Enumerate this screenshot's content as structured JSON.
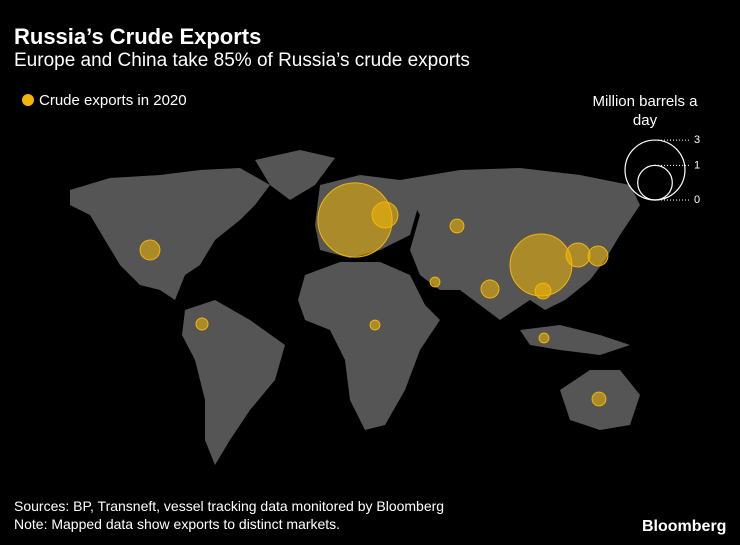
{
  "chart_data": {
    "type": "bubble-map",
    "title": "Russia’s Crude Exports",
    "subtitle": "Europe and China take 85% of Russia’s crude exports",
    "series": [
      {
        "name": "Crude exports in 2020",
        "color": "#f2b705",
        "values": [
          4.6,
          0.56,
          0.16,
          0.33,
          3.2,
          0.48,
          0.33,
          0.27,
          0.08,
          0.21,
          0.12,
          0.08,
          0.08,
          0.16
        ]
      }
    ],
    "size_legend": {
      "title": "Million barrels a day",
      "ticks": [
        3,
        1,
        0
      ]
    },
    "sources": "Sources: BP, Transneft, vessel tracking data monitored by Bloomberg",
    "note": "Note: Mapped data show exports to distinct markets.",
    "logo": "Bloomberg"
  }
}
